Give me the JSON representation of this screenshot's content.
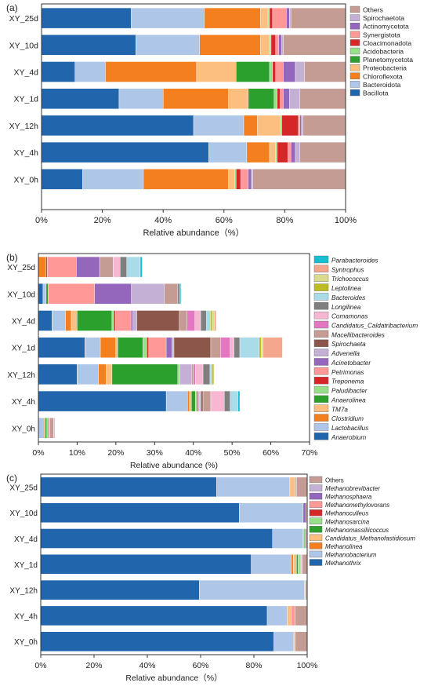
{
  "chart_data": [
    {
      "panel_label": "(a)",
      "type": "bar",
      "orientation": "horizontal",
      "stacked": true,
      "categories": [
        "XY_25d",
        "XY_10d",
        "XY_4d",
        "XY_1d",
        "XY_12h",
        "XY_4h",
        "XY_0h"
      ],
      "xlabel": "Relative abundance（%）",
      "xlim": [
        0,
        100
      ],
      "xticks": [
        "0%",
        "20%",
        "40%",
        "60%",
        "80%",
        "100%"
      ],
      "legend_position": "right",
      "series": [
        {
          "name": "Bacillota",
          "color": "#2166ac",
          "values": [
            29.5,
            31,
            11,
            25.5,
            50,
            55,
            13.5
          ]
        },
        {
          "name": "Bacteroidota",
          "color": "#aec7e8",
          "values": [
            24,
            21,
            10,
            14.5,
            16.5,
            12.5,
            20
          ]
        },
        {
          "name": "Chloroflexota",
          "color": "#f37f1f",
          "values": [
            18.5,
            20,
            30,
            21.5,
            4.5,
            7.5,
            28
          ]
        },
        {
          "name": "Proteobacteria",
          "color": "#fdbf7f",
          "values": [
            2.5,
            3,
            13,
            6.5,
            7.5,
            2,
            2
          ]
        },
        {
          "name": "Planetomycetota",
          "color": "#2ca02c",
          "values": [
            0,
            0,
            11,
            8.5,
            0,
            0,
            0
          ]
        },
        {
          "name": "Acidobacteria",
          "color": "#98df8a",
          "values": [
            0.5,
            0.5,
            1,
            1,
            0.5,
            0.5,
            0.5
          ]
        },
        {
          "name": "Cloacimonadota",
          "color": "#d62728",
          "values": [
            1,
            1.5,
            1,
            1,
            5.5,
            3.5,
            1.5
          ]
        },
        {
          "name": "Synergistota",
          "color": "#ff9896",
          "values": [
            4.5,
            1,
            2.5,
            1,
            0.5,
            1,
            2.5
          ]
        },
        {
          "name": "Actinomycetota",
          "color": "#9467bd",
          "values": [
            1,
            1,
            4,
            2,
            0.5,
            1.5,
            1
          ]
        },
        {
          "name": "Spirochaetota",
          "color": "#c5b0d5",
          "values": [
            0.5,
            0.5,
            3,
            3.5,
            0.5,
            1.5,
            0.5
          ]
        },
        {
          "name": "Others",
          "color": "#c49c94",
          "values": [
            18,
            20.5,
            13.5,
            15,
            14,
            15,
            30.5
          ]
        }
      ]
    },
    {
      "panel_label": "(b)",
      "type": "bar",
      "orientation": "horizontal",
      "stacked": true,
      "categories": [
        "XY_25d",
        "XY_10d",
        "XY_4d",
        "XY_1d",
        "XY_12h",
        "XY_4h",
        "XY_0h"
      ],
      "xlabel": "Relative abundance (%)",
      "xlim": [
        0,
        70
      ],
      "xticks": [
        "0%",
        "10%",
        "20%",
        "30%",
        "40%",
        "50%",
        "60%",
        "70%"
      ],
      "legend_position": "right",
      "series": [
        {
          "name": "Anaerobium",
          "color": "#2166ac",
          "values": [
            0,
            1.2,
            3.5,
            12,
            10,
            33,
            0
          ]
        },
        {
          "name": "Lactobacillus",
          "color": "#aec7e8",
          "values": [
            0,
            0.8,
            3.5,
            4,
            5.5,
            5.5,
            1.5
          ]
        },
        {
          "name": "Clostridium",
          "color": "#f37f1f",
          "values": [
            2,
            0,
            1.5,
            4,
            2,
            0.5,
            0.3
          ]
        },
        {
          "name": "TM7a",
          "color": "#fdbf7f",
          "values": [
            0,
            0,
            1.5,
            0.5,
            1.5,
            0.5,
            0
          ]
        },
        {
          "name": "Anaerolinea",
          "color": "#2ca02c",
          "values": [
            0,
            0.5,
            9,
            6.5,
            17,
            1,
            0.4
          ]
        },
        {
          "name": "Paludibacter",
          "color": "#98df8a",
          "values": [
            0,
            0,
            0.5,
            1,
            0.5,
            0.3,
            0.3
          ]
        },
        {
          "name": "Treponema",
          "color": "#d62728",
          "values": [
            0.3,
            0,
            0.4,
            0.5,
            0,
            0.3,
            0.2
          ]
        },
        {
          "name": "Petrimonas",
          "color": "#ff9896",
          "values": [
            7.5,
            12,
            4,
            4.5,
            0,
            0.2,
            0.2
          ]
        },
        {
          "name": "Acinetobacter",
          "color": "#9467bd",
          "values": [
            6,
            9.5,
            0.5,
            1.5,
            0,
            0.2,
            0
          ]
        },
        {
          "name": "Advenella",
          "color": "#c5b0d5",
          "values": [
            0,
            8.5,
            1,
            0.5,
            3,
            0.5,
            0
          ]
        },
        {
          "name": "Spirochaeta",
          "color": "#8c564b",
          "values": [
            0,
            0,
            11,
            9.5,
            0,
            0.5,
            0
          ]
        },
        {
          "name": "Macellibacteroides",
          "color": "#c49c94",
          "values": [
            3.5,
            3.5,
            2,
            2.5,
            0.5,
            2,
            1
          ]
        },
        {
          "name": "Candidatus_Caldatribacterium",
          "color": "#e377c2",
          "values": [
            0,
            0,
            2,
            2.5,
            0.5,
            0,
            0
          ]
        },
        {
          "name": "Comamonas",
          "color": "#f7b6d2",
          "values": [
            1.8,
            0,
            1.5,
            1,
            2,
            3.5,
            0.4
          ]
        },
        {
          "name": "Longilinea",
          "color": "#7f7f7f",
          "values": [
            1.7,
            0.5,
            1.5,
            1.5,
            1.8,
            1.5,
            0
          ]
        },
        {
          "name": "Bacteroides",
          "color": "#aadbe9",
          "values": [
            3.5,
            0,
            1,
            5,
            0.5,
            2,
            0
          ]
        },
        {
          "name": "Leptolinea",
          "color": "#bcbd22",
          "values": [
            0,
            0,
            0.5,
            0.5,
            0.5,
            0,
            0
          ]
        },
        {
          "name": "Trichococcus",
          "color": "#dbdb8d",
          "values": [
            0,
            0,
            0.5,
            0.5,
            0,
            0,
            0
          ]
        },
        {
          "name": "Syntrophus",
          "color": "#f4a78c",
          "values": [
            0,
            0,
            0.5,
            5,
            0,
            0,
            0
          ]
        },
        {
          "name": "Parabacteroides",
          "color": "#17becf",
          "values": [
            0.5,
            0.3,
            0,
            0,
            0,
            0.5,
            0
          ]
        }
      ]
    },
    {
      "panel_label": "(c)",
      "type": "bar",
      "orientation": "horizontal",
      "stacked": true,
      "categories": [
        "XY_25d",
        "XY_10d",
        "XY_4d",
        "XY_1d",
        "XY_12h",
        "XY_4h",
        "XY_0h"
      ],
      "xlabel": "Relative abundance（%）",
      "xlim": [
        0,
        100
      ],
      "xticks": [
        "0%",
        "20%",
        "40%",
        "60%",
        "80%",
        "100%"
      ],
      "legend_position": "right",
      "series": [
        {
          "name": "Methanothrix",
          "color": "#2166ac",
          "values": [
            66,
            74.5,
            87,
            79,
            59.5,
            85,
            87.5
          ]
        },
        {
          "name": "Methanobacterium",
          "color": "#aec7e8",
          "values": [
            27.5,
            24,
            11.5,
            15,
            39.5,
            7.5,
            7.5
          ]
        },
        {
          "name": "Methanolinea",
          "color": "#f37f1f",
          "values": [
            0,
            0,
            0,
            0.8,
            0,
            0,
            0
          ]
        },
        {
          "name": "Candidatus_Methanofastidiosum",
          "color": "#fdbf7f",
          "values": [
            2,
            0,
            0.4,
            1.2,
            0.2,
            1.5,
            0.5
          ]
        },
        {
          "name": "Methanomassiliicoccus",
          "color": "#2ca02c",
          "values": [
            0,
            0,
            0.3,
            0.6,
            0,
            0,
            0
          ]
        },
        {
          "name": "Methanosarcina",
          "color": "#98df8a",
          "values": [
            0,
            0,
            0,
            0.8,
            0.3,
            0,
            0
          ]
        },
        {
          "name": "Methanoculleus",
          "color": "#d62728",
          "values": [
            0,
            0,
            0,
            0,
            0,
            0,
            0
          ]
        },
        {
          "name": "Methanomethylovorans",
          "color": "#ff9896",
          "values": [
            0,
            0,
            0,
            0.4,
            0,
            1.5,
            0
          ]
        },
        {
          "name": "Methanosphaera",
          "color": "#9467bd",
          "values": [
            0,
            1,
            0.3,
            0,
            0,
            0,
            0
          ]
        },
        {
          "name": "Methanobrevibacter",
          "color": "#c5b0d5",
          "values": [
            0.5,
            0,
            0,
            0.4,
            0,
            0,
            0
          ]
        },
        {
          "name": "Others",
          "color": "#c49c94",
          "values": [
            4,
            0.5,
            0.5,
            1.8,
            0.5,
            4.5,
            4.5
          ]
        }
      ]
    }
  ]
}
